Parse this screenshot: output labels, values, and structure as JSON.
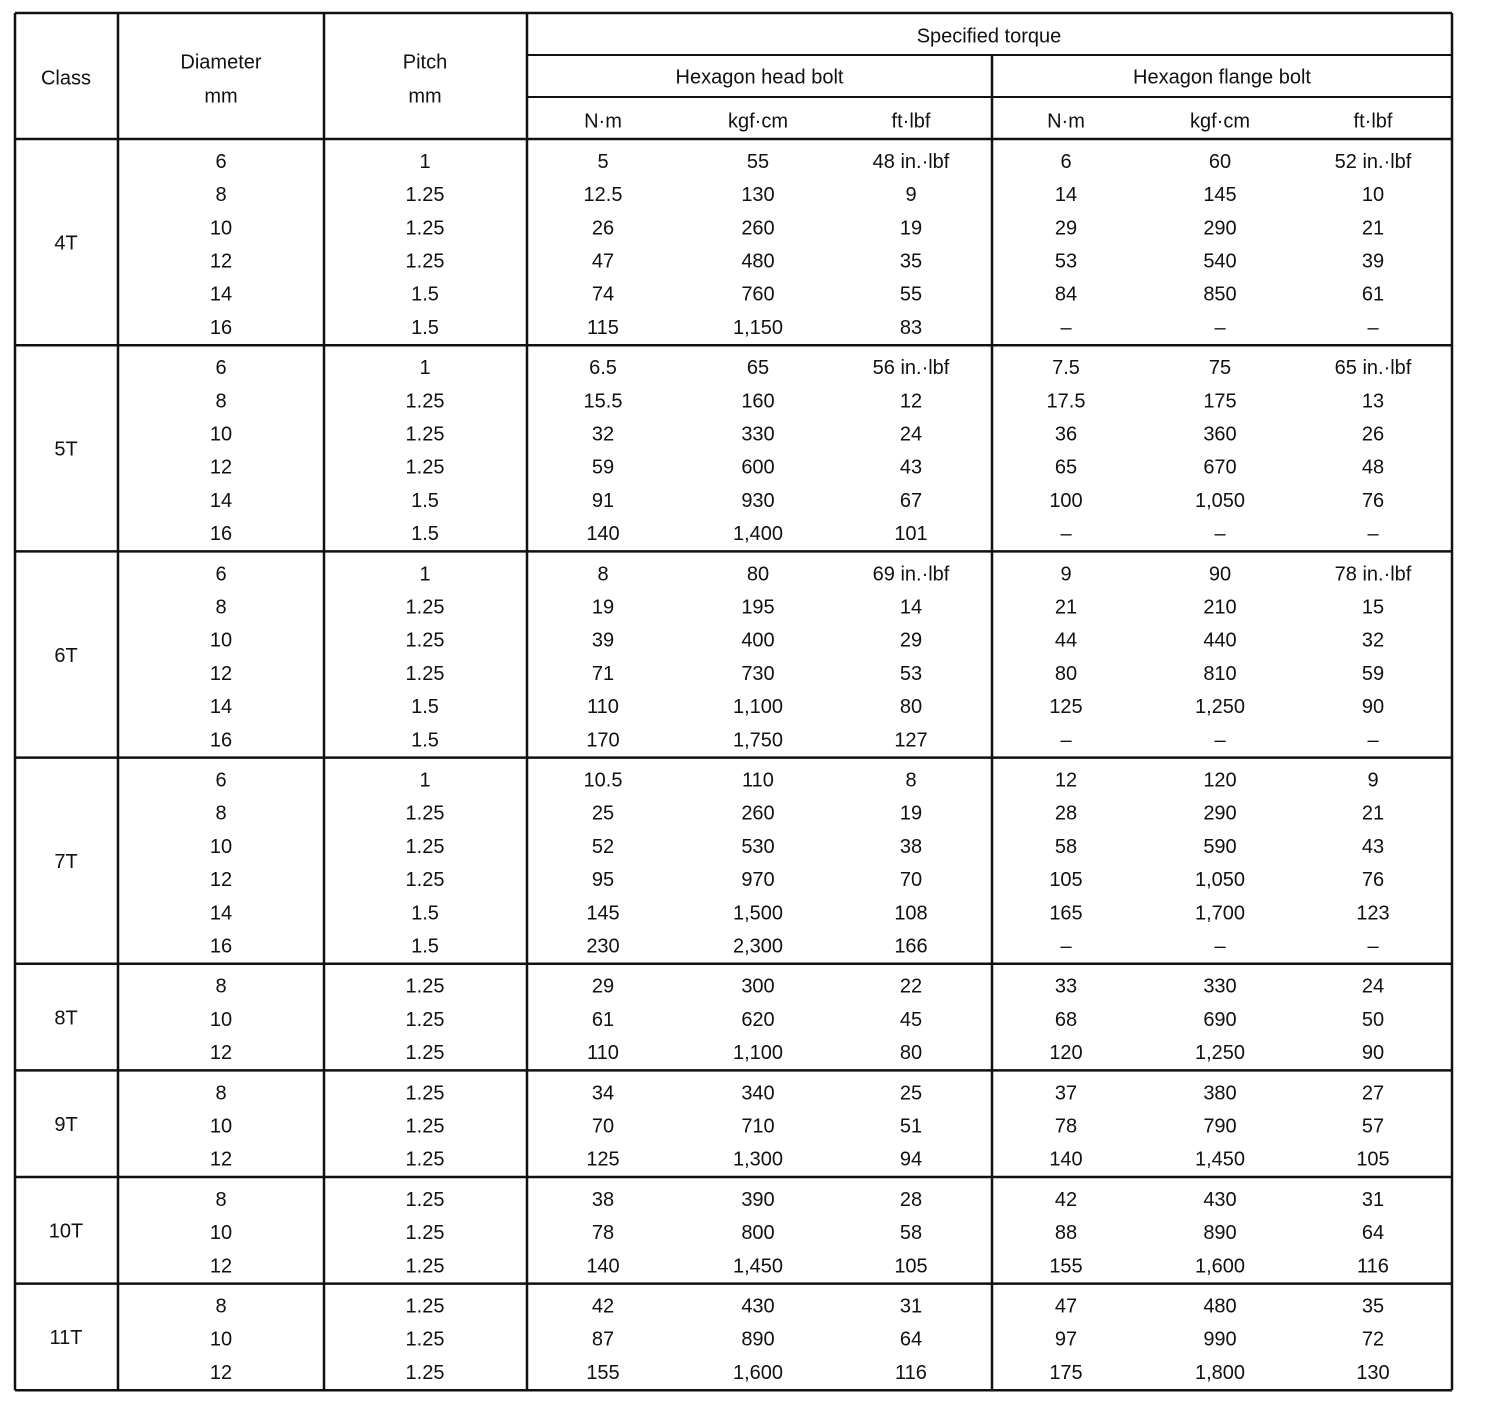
{
  "header": {
    "class": "Class",
    "diameter": {
      "label": "Diameter",
      "unit": "mm"
    },
    "pitch": {
      "label": "Pitch",
      "unit": "mm"
    },
    "torque": "Specified torque",
    "bolts": [
      {
        "title": "Hexagon head bolt",
        "units": [
          "N·m",
          "kgf·cm",
          "ft·lbf"
        ]
      },
      {
        "title": "Hexagon flange bolt",
        "units": [
          "N·m",
          "kgf·cm",
          "ft·lbf"
        ]
      }
    ]
  },
  "table": {
    "groups": [
      {
        "class": "4T",
        "rows": [
          [
            "6",
            "1",
            "5",
            "55",
            "48 in.·lbf",
            "6",
            "60",
            "52 in.·lbf"
          ],
          [
            "8",
            "1.25",
            "12.5",
            "130",
            "9",
            "14",
            "145",
            "10"
          ],
          [
            "10",
            "1.25",
            "26",
            "260",
            "19",
            "29",
            "290",
            "21"
          ],
          [
            "12",
            "1.25",
            "47",
            "480",
            "35",
            "53",
            "540",
            "39"
          ],
          [
            "14",
            "1.5",
            "74",
            "760",
            "55",
            "84",
            "850",
            "61"
          ],
          [
            "16",
            "1.5",
            "115",
            "1,150",
            "83",
            "–",
            "–",
            "–"
          ]
        ]
      },
      {
        "class": "5T",
        "rows": [
          [
            "6",
            "1",
            "6.5",
            "65",
            "56 in.·lbf",
            "7.5",
            "75",
            "65 in.·lbf"
          ],
          [
            "8",
            "1.25",
            "15.5",
            "160",
            "12",
            "17.5",
            "175",
            "13"
          ],
          [
            "10",
            "1.25",
            "32",
            "330",
            "24",
            "36",
            "360",
            "26"
          ],
          [
            "12",
            "1.25",
            "59",
            "600",
            "43",
            "65",
            "670",
            "48"
          ],
          [
            "14",
            "1.5",
            "91",
            "930",
            "67",
            "100",
            "1,050",
            "76"
          ],
          [
            "16",
            "1.5",
            "140",
            "1,400",
            "101",
            "–",
            "–",
            "–"
          ]
        ]
      },
      {
        "class": "6T",
        "rows": [
          [
            "6",
            "1",
            "8",
            "80",
            "69 in.·lbf",
            "9",
            "90",
            "78 in.·lbf"
          ],
          [
            "8",
            "1.25",
            "19",
            "195",
            "14",
            "21",
            "210",
            "15"
          ],
          [
            "10",
            "1.25",
            "39",
            "400",
            "29",
            "44",
            "440",
            "32"
          ],
          [
            "12",
            "1.25",
            "71",
            "730",
            "53",
            "80",
            "810",
            "59"
          ],
          [
            "14",
            "1.5",
            "110",
            "1,100",
            "80",
            "125",
            "1,250",
            "90"
          ],
          [
            "16",
            "1.5",
            "170",
            "1,750",
            "127",
            "–",
            "–",
            "–"
          ]
        ]
      },
      {
        "class": "7T",
        "rows": [
          [
            "6",
            "1",
            "10.5",
            "110",
            "8",
            "12",
            "120",
            "9"
          ],
          [
            "8",
            "1.25",
            "25",
            "260",
            "19",
            "28",
            "290",
            "21"
          ],
          [
            "10",
            "1.25",
            "52",
            "530",
            "38",
            "58",
            "590",
            "43"
          ],
          [
            "12",
            "1.25",
            "95",
            "970",
            "70",
            "105",
            "1,050",
            "76"
          ],
          [
            "14",
            "1.5",
            "145",
            "1,500",
            "108",
            "165",
            "1,700",
            "123"
          ],
          [
            "16",
            "1.5",
            "230",
            "2,300",
            "166",
            "–",
            "–",
            "–"
          ]
        ]
      },
      {
        "class": "8T",
        "rows": [
          [
            "8",
            "1.25",
            "29",
            "300",
            "22",
            "33",
            "330",
            "24"
          ],
          [
            "10",
            "1.25",
            "61",
            "620",
            "45",
            "68",
            "690",
            "50"
          ],
          [
            "12",
            "1.25",
            "110",
            "1,100",
            "80",
            "120",
            "1,250",
            "90"
          ]
        ]
      },
      {
        "class": "9T",
        "rows": [
          [
            "8",
            "1.25",
            "34",
            "340",
            "25",
            "37",
            "380",
            "27"
          ],
          [
            "10",
            "1.25",
            "70",
            "710",
            "51",
            "78",
            "790",
            "57"
          ],
          [
            "12",
            "1.25",
            "125",
            "1,300",
            "94",
            "140",
            "1,450",
            "105"
          ]
        ]
      },
      {
        "class": "10T",
        "rows": [
          [
            "8",
            "1.25",
            "38",
            "390",
            "28",
            "42",
            "430",
            "31"
          ],
          [
            "10",
            "1.25",
            "78",
            "800",
            "58",
            "88",
            "890",
            "64"
          ],
          [
            "12",
            "1.25",
            "140",
            "1,450",
            "105",
            "155",
            "1,600",
            "116"
          ]
        ]
      },
      {
        "class": "11T",
        "rows": [
          [
            "8",
            "1.25",
            "42",
            "430",
            "31",
            "47",
            "480",
            "35"
          ],
          [
            "10",
            "1.25",
            "87",
            "890",
            "64",
            "97",
            "990",
            "72"
          ],
          [
            "12",
            "1.25",
            "155",
            "1,600",
            "116",
            "175",
            "1,800",
            "130"
          ]
        ]
      }
    ]
  }
}
